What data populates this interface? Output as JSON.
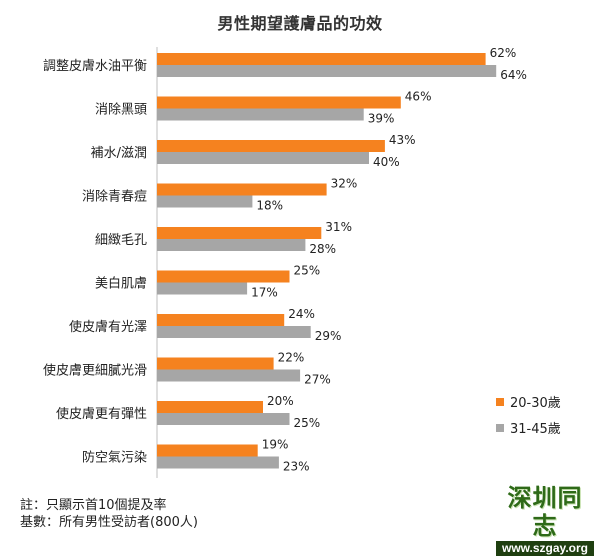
{
  "chart_data": {
    "type": "bar",
    "orientation": "horizontal",
    "title": "男性期望護膚品的功效",
    "categories": [
      "調整皮膚水油平衡",
      "消除黑頭",
      "補水/滋潤",
      "消除青春痘",
      "細緻毛孔",
      "美白肌膚",
      "使皮膚有光澤",
      "使皮膚更細膩光滑",
      "使皮膚更有彈性",
      "防空氣污染"
    ],
    "series": [
      {
        "name": "20-30歲",
        "color": "#f5821f",
        "values": [
          62,
          46,
          43,
          32,
          31,
          25,
          24,
          22,
          20,
          19
        ]
      },
      {
        "name": "31-45歲",
        "color": "#a6a6a6",
        "values": [
          64,
          39,
          40,
          18,
          28,
          17,
          29,
          27,
          25,
          23
        ]
      }
    ],
    "value_suffix": "%",
    "xlim": [
      0,
      100
    ],
    "grid": false,
    "legend_position": "right"
  },
  "notes": {
    "line1": "註：只顯示首10個提及率",
    "line2": "基數：所有男性受訪者(800人)"
  },
  "watermark": {
    "name": "深圳同志",
    "url": "www.szgay.org"
  }
}
